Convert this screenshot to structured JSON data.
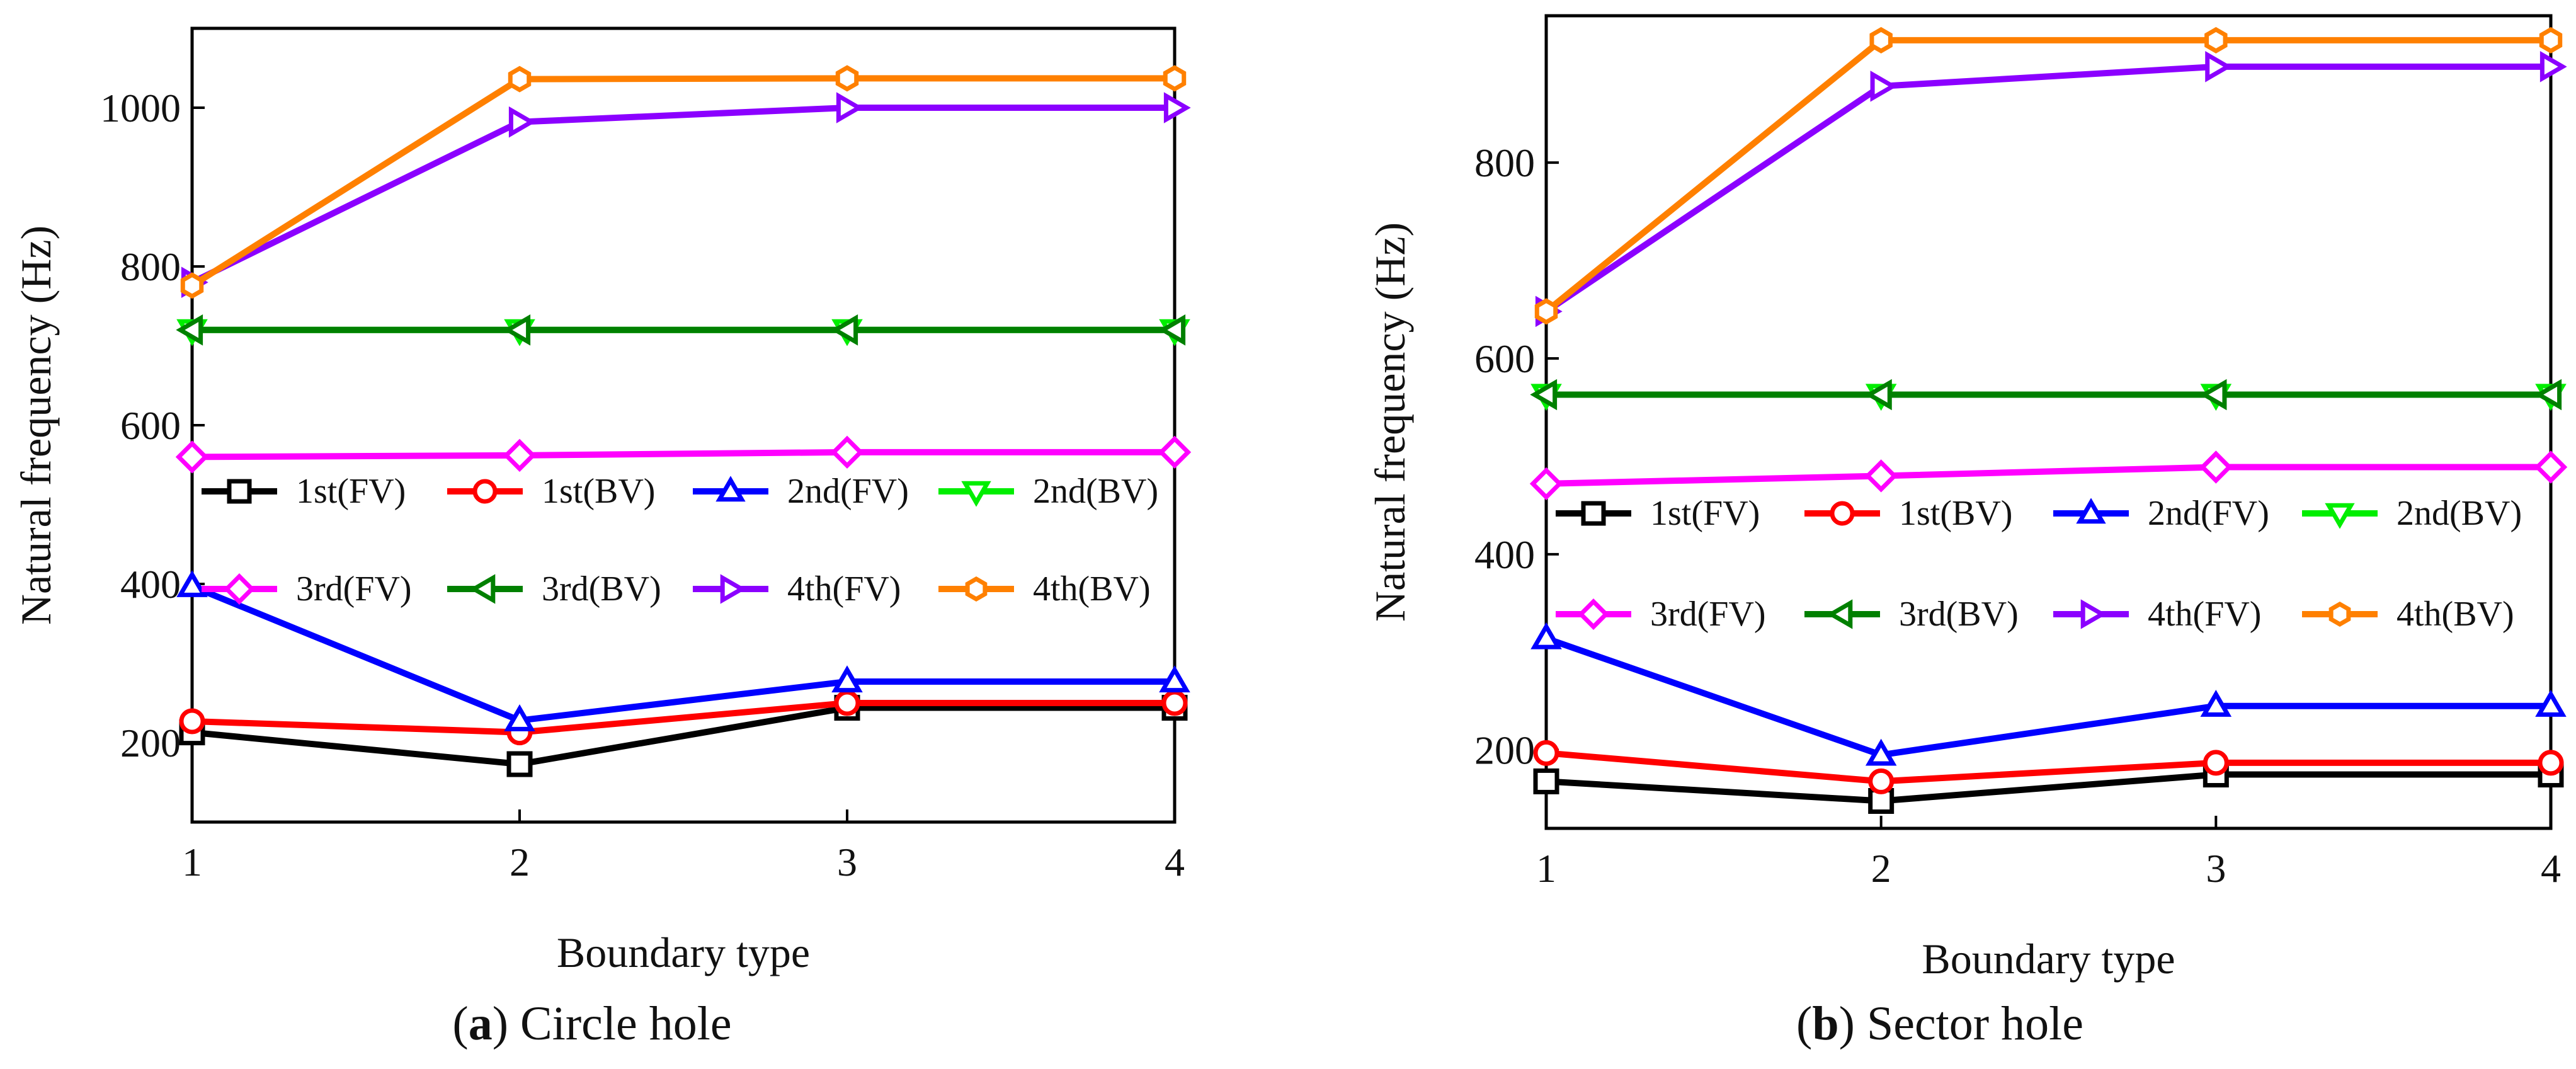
{
  "figure": {
    "captions": [
      {
        "letter": "a",
        "text": " Circle hole"
      },
      {
        "letter": "b",
        "text": " Sector hole"
      }
    ]
  },
  "chart_data": [
    {
      "type": "line",
      "xlabel": "Boundary type",
      "ylabel": "Natural frequency (Hz)",
      "xlim": [
        1,
        4
      ],
      "ylim": [
        100,
        1100
      ],
      "xticks": [
        1,
        2,
        3,
        4
      ],
      "yticks": [
        200,
        400,
        600,
        800,
        1000
      ],
      "grid": false,
      "legend_position": "middle, two rows of four",
      "x": [
        1,
        2,
        3,
        4
      ],
      "series": [
        {
          "name": "1st(FV)",
          "color": "#000000",
          "marker": "square",
          "values": [
            213,
            173,
            244,
            244
          ]
        },
        {
          "name": "1st(BV)",
          "color": "#ff0000",
          "marker": "circle",
          "values": [
            227,
            213,
            250,
            250
          ]
        },
        {
          "name": "2nd(FV)",
          "color": "#0000ff",
          "marker": "triangle-up",
          "values": [
            397,
            228,
            277,
            277
          ]
        },
        {
          "name": "2nd(BV)",
          "color": "#00ee00",
          "marker": "triangle-down",
          "values": [
            720,
            720,
            720,
            720
          ]
        },
        {
          "name": "3rd(FV)",
          "color": "#ff00ff",
          "marker": "diamond",
          "values": [
            560,
            562,
            566,
            566
          ]
        },
        {
          "name": "3rd(BV)",
          "color": "#008000",
          "marker": "triangle-left",
          "values": [
            720,
            720,
            720,
            720
          ]
        },
        {
          "name": "4th(FV)",
          "color": "#8b00ff",
          "marker": "triangle-right",
          "values": [
            780,
            982,
            1000,
            1000
          ]
        },
        {
          "name": "4th(BV)",
          "color": "#ff8000",
          "marker": "hexagon",
          "values": [
            776,
            1036,
            1037,
            1037
          ]
        }
      ]
    },
    {
      "type": "line",
      "xlabel": "Boundary type",
      "ylabel": "Natural frequency (Hz)",
      "xlim": [
        1,
        4
      ],
      "ylim": [
        120,
        950
      ],
      "xticks": [
        1,
        2,
        3,
        4
      ],
      "yticks": [
        200,
        400,
        600,
        800
      ],
      "grid": false,
      "legend_position": "middle, two rows of four",
      "x": [
        1,
        2,
        3,
        4
      ],
      "series": [
        {
          "name": "1st(FV)",
          "color": "#000000",
          "marker": "square",
          "values": [
            168,
            148,
            175,
            175
          ]
        },
        {
          "name": "1st(BV)",
          "color": "#ff0000",
          "marker": "circle",
          "values": [
            197,
            168,
            187,
            187
          ]
        },
        {
          "name": "2nd(FV)",
          "color": "#0000ff",
          "marker": "triangle-up",
          "values": [
            314,
            195,
            245,
            245
          ]
        },
        {
          "name": "2nd(BV)",
          "color": "#00ee00",
          "marker": "triangle-down",
          "values": [
            563,
            563,
            563,
            563
          ]
        },
        {
          "name": "3rd(FV)",
          "color": "#ff00ff",
          "marker": "diamond",
          "values": [
            472,
            480,
            489,
            489
          ]
        },
        {
          "name": "3rd(BV)",
          "color": "#008000",
          "marker": "triangle-left",
          "values": [
            563,
            563,
            563,
            563
          ]
        },
        {
          "name": "4th(FV)",
          "color": "#8b00ff",
          "marker": "triangle-right",
          "values": [
            648,
            878,
            898,
            898
          ]
        },
        {
          "name": "4th(BV)",
          "color": "#ff8000",
          "marker": "hexagon",
          "values": [
            648,
            925,
            925,
            925
          ]
        }
      ]
    }
  ]
}
